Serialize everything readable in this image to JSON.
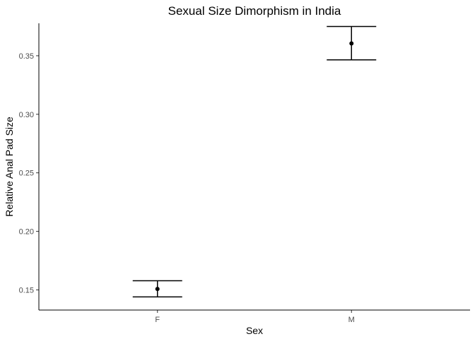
{
  "chart_data": {
    "type": "scatter",
    "title": "Sexual Size Dimorphism in India",
    "xlabel": "Sex",
    "ylabel": "Relative Anal Pad Size",
    "categories": [
      "F",
      "M"
    ],
    "series": [
      {
        "values": [
          0.1508,
          0.3605
        ],
        "error_low": [
          0.144,
          0.3465
        ],
        "error_high": [
          0.1578,
          0.375
        ]
      }
    ],
    "yticks": [
      0.15,
      0.2,
      0.25,
      0.3,
      0.35
    ],
    "ytick_labels": [
      "0.15",
      "0.20",
      "0.25",
      "0.30",
      "0.35"
    ],
    "ylim": [
      0.1328,
      0.3777
    ],
    "grid": false,
    "legend": "none"
  }
}
